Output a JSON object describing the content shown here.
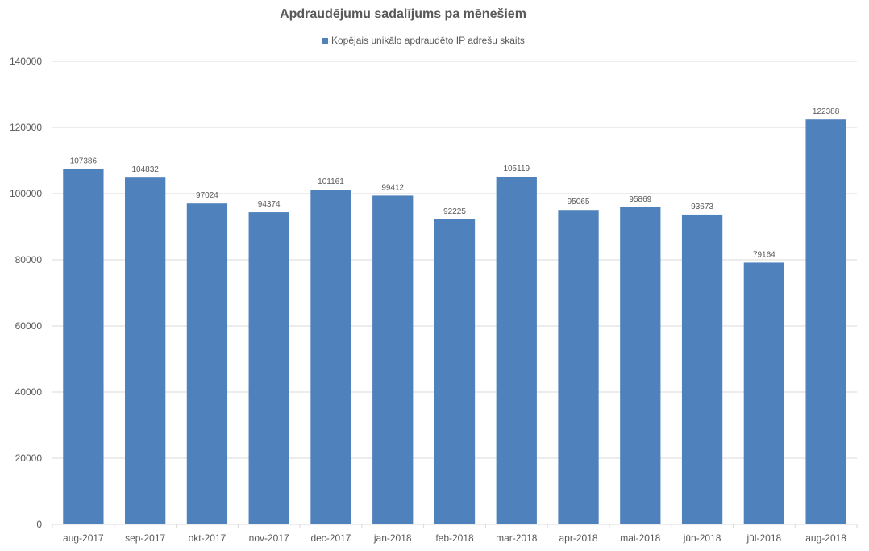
{
  "chart_data": {
    "type": "bar",
    "title": "Apdraudējumu sadalījums pa mēnešiem",
    "categories": [
      "aug-2017",
      "sep-2017",
      "okt-2017",
      "nov-2017",
      "dec-2017",
      "jan-2018",
      "feb-2018",
      "mar-2018",
      "apr-2018",
      "mai-2018",
      "jūn-2018",
      "jūl-2018",
      "aug-2018"
    ],
    "series": [
      {
        "name": "Kopējais unikālo apdraudēto IP adrešu skaits",
        "values": [
          107386,
          104832,
          97024,
          94374,
          101161,
          99412,
          92225,
          105119,
          95065,
          95869,
          93673,
          79164,
          122388
        ]
      }
    ],
    "ylim": [
      0,
      140000
    ],
    "yticks": [
      0,
      20000,
      40000,
      60000,
      80000,
      100000,
      120000,
      140000
    ],
    "xlabel": "",
    "ylabel": "",
    "grid": true,
    "legend_position": "top",
    "colors": {
      "bar": "#4f81bd",
      "grid": "#d9d9d9",
      "text": "#595959"
    }
  }
}
